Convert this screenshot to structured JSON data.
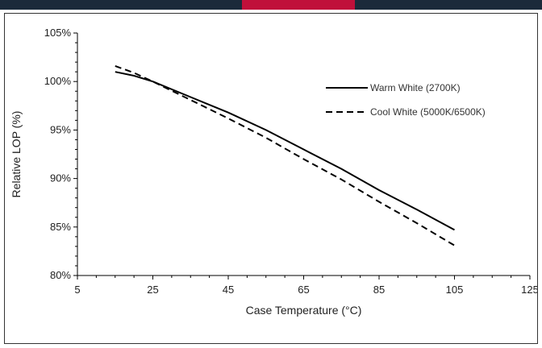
{
  "colors": {
    "strip": "#1b2a3a",
    "strip_accent": "#c0103a",
    "line": "#000000",
    "axis": "#000000"
  },
  "chart_data": {
    "type": "line",
    "title": "",
    "xlabel": "Case Temperature (°C)",
    "ylabel": "Relative LOP (%)",
    "xlim": [
      5,
      125
    ],
    "ylim": [
      80,
      105
    ],
    "x_ticks": [
      5,
      25,
      45,
      65,
      85,
      105,
      125
    ],
    "x_tick_labels": [
      "5",
      "25",
      "45",
      "65",
      "85",
      "105",
      "125"
    ],
    "y_ticks": [
      80,
      85,
      90,
      95,
      100,
      105
    ],
    "y_tick_labels": [
      "80%",
      "85%",
      "90%",
      "95%",
      "100%",
      "105%"
    ],
    "grid": false,
    "legend_position": "top-right",
    "series": [
      {
        "name": "Warm White (2700K)",
        "style": "solid",
        "x": [
          15,
          20,
          25,
          35,
          45,
          55,
          65,
          75,
          85,
          95,
          105
        ],
        "y": [
          101.0,
          100.6,
          100.0,
          98.4,
          96.8,
          95.0,
          93.0,
          91.0,
          88.8,
          86.8,
          84.7
        ]
      },
      {
        "name": "Cool White (5000K/6500K)",
        "style": "dashed",
        "x": [
          15,
          20,
          25,
          35,
          45,
          55,
          65,
          75,
          85,
          95,
          105
        ],
        "y": [
          101.6,
          100.9,
          100.0,
          98.1,
          96.2,
          94.2,
          92.0,
          89.9,
          87.6,
          85.4,
          83.1
        ]
      }
    ]
  }
}
